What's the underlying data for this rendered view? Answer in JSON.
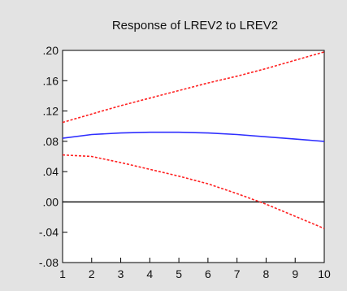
{
  "chart_data": {
    "type": "line",
    "title": "Response of LREV2 to LREV2",
    "xlabel": "",
    "ylabel": "",
    "xlim": [
      1,
      10
    ],
    "ylim": [
      -0.08,
      0.2
    ],
    "x_ticks": [
      "1",
      "2",
      "3",
      "4",
      "5",
      "6",
      "7",
      "8",
      "9",
      "10"
    ],
    "y_ticks": [
      ".20",
      ".16",
      ".12",
      ".08",
      ".04",
      ".00",
      "-.04",
      "-.08"
    ],
    "grid": false,
    "legend": "none",
    "zero_line": true,
    "x": [
      1,
      2,
      3,
      4,
      5,
      6,
      7,
      8,
      9,
      10
    ],
    "series": [
      {
        "values": [
          0.084,
          0.089,
          0.091,
          0.092,
          0.092,
          0.091,
          0.089,
          0.086,
          0.083,
          0.08
        ],
        "color": "#2f2fff",
        "style": "solid"
      },
      {
        "values": [
          0.105,
          0.116,
          0.127,
          0.137,
          0.147,
          0.157,
          0.166,
          0.176,
          0.187,
          0.198
        ],
        "color": "#ff2020",
        "style": "dashed"
      },
      {
        "values": [
          0.062,
          0.06,
          0.052,
          0.043,
          0.034,
          0.024,
          0.011,
          -0.003,
          -0.019,
          -0.035
        ],
        "color": "#ff2020",
        "style": "dashed"
      }
    ]
  }
}
